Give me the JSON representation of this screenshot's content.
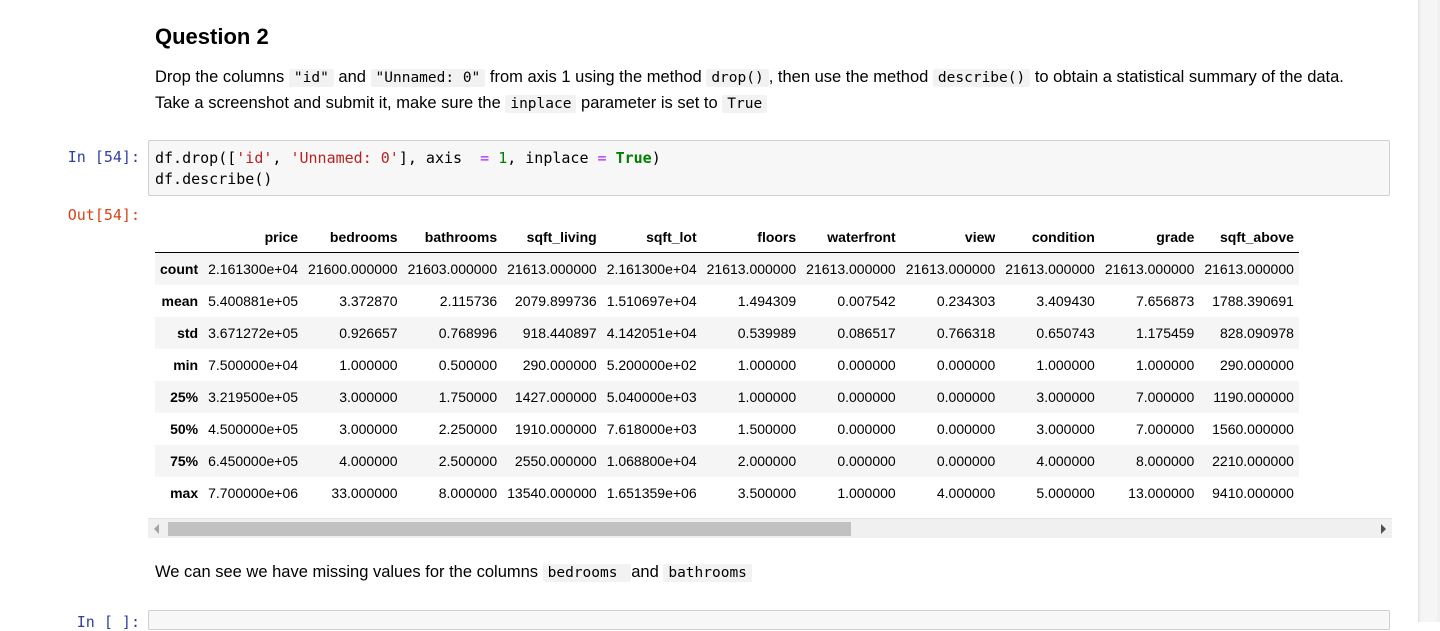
{
  "question": {
    "title": "Question 2",
    "p1": "Drop the columns ",
    "code_id": "\"id\"",
    "p2": " and ",
    "code_unnamed": "\"Unnamed: 0\"",
    "p3": " from axis 1 using the method ",
    "code_drop": "drop()",
    "p4": ", then use the method ",
    "code_describe": "describe()",
    "p5": " to obtain a statistical summary of the data. Take a screenshot and submit it, make sure the ",
    "code_inplace": "inplace",
    "p6": " parameter is set to ",
    "code_true": "True"
  },
  "cell_in": {
    "prompt": "In [54]:",
    "line1_a": "df.drop([",
    "line1_s1": "'id'",
    "line1_b": ", ",
    "line1_s2": "'Unnamed: 0'",
    "line1_c": "], axis  ",
    "line1_eq1": "=",
    "line1_d": " ",
    "line1_num": "1",
    "line1_e": ", inplace ",
    "line1_eq2": "=",
    "line1_f": " ",
    "line1_true": "True",
    "line1_g": ")",
    "line2": "df.describe()"
  },
  "cell_out": {
    "prompt": "Out[54]:",
    "columns": [
      "",
      "price",
      "bedrooms",
      "bathrooms",
      "sqft_living",
      "sqft_lot",
      "floors",
      "waterfront",
      "view",
      "condition",
      "grade",
      "sqft_above"
    ],
    "rows": [
      [
        "count",
        "2.161300e+04",
        "21600.000000",
        "21603.000000",
        "21613.000000",
        "2.161300e+04",
        "21613.000000",
        "21613.000000",
        "21613.000000",
        "21613.000000",
        "21613.000000",
        "21613.000000"
      ],
      [
        "mean",
        "5.400881e+05",
        "3.372870",
        "2.115736",
        "2079.899736",
        "1.510697e+04",
        "1.494309",
        "0.007542",
        "0.234303",
        "3.409430",
        "7.656873",
        "1788.390691"
      ],
      [
        "std",
        "3.671272e+05",
        "0.926657",
        "0.768996",
        "918.440897",
        "4.142051e+04",
        "0.539989",
        "0.086517",
        "0.766318",
        "0.650743",
        "1.175459",
        "828.090978"
      ],
      [
        "min",
        "7.500000e+04",
        "1.000000",
        "0.500000",
        "290.000000",
        "5.200000e+02",
        "1.000000",
        "0.000000",
        "0.000000",
        "1.000000",
        "1.000000",
        "290.000000"
      ],
      [
        "25%",
        "3.219500e+05",
        "3.000000",
        "1.750000",
        "1427.000000",
        "5.040000e+03",
        "1.000000",
        "0.000000",
        "0.000000",
        "3.000000",
        "7.000000",
        "1190.000000"
      ],
      [
        "50%",
        "4.500000e+05",
        "3.000000",
        "2.250000",
        "1910.000000",
        "7.618000e+03",
        "1.500000",
        "0.000000",
        "0.000000",
        "3.000000",
        "7.000000",
        "1560.000000"
      ],
      [
        "75%",
        "6.450000e+05",
        "4.000000",
        "2.500000",
        "2550.000000",
        "1.068800e+04",
        "2.000000",
        "0.000000",
        "0.000000",
        "4.000000",
        "8.000000",
        "2210.000000"
      ],
      [
        "max",
        "7.700000e+06",
        "33.000000",
        "8.000000",
        "13540.000000",
        "1.651359e+06",
        "3.500000",
        "1.000000",
        "4.000000",
        "5.000000",
        "13.000000",
        "9410.000000"
      ]
    ]
  },
  "note": {
    "p1": "We can see we have missing values for the columns ",
    "code_bedrooms": " bedrooms ",
    "p2": " and ",
    "code_bathrooms": " bathrooms "
  },
  "next_cell": {
    "prompt": "In [ ]:"
  }
}
